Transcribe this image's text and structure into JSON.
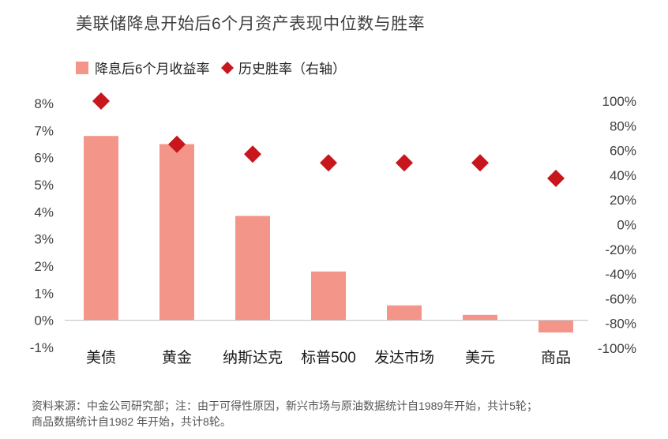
{
  "chart_data": {
    "type": "bar",
    "title": "美联储降息开始后6个月资产表现中位数与胜率",
    "categories": [
      "美债",
      "黄金",
      "纳斯达克",
      "标普500",
      "发达市场",
      "美元",
      "商品"
    ],
    "series": [
      {
        "name": "降息后6个月收益率",
        "type": "bar",
        "axis": "left",
        "color": "#f4958a",
        "values": [
          6.8,
          6.5,
          3.85,
          1.8,
          0.55,
          0.2,
          -0.45
        ]
      },
      {
        "name": "历史胜率（右轴）",
        "type": "scatter",
        "axis": "right",
        "marker": "diamond",
        "color": "#c8161d",
        "values": [
          100,
          65,
          57,
          50,
          50,
          50,
          37.5
        ]
      }
    ],
    "y_left": {
      "range": [
        -1,
        8
      ],
      "ticks": [
        -1,
        0,
        1,
        2,
        3,
        4,
        5,
        6,
        7,
        8
      ],
      "tick_labels": [
        "-1%",
        "0%",
        "1%",
        "2%",
        "3%",
        "4%",
        "5%",
        "6%",
        "7%",
        "8%"
      ]
    },
    "y_right": {
      "range": [
        -100,
        100
      ],
      "ticks": [
        -100,
        -80,
        -60,
        -40,
        -20,
        0,
        20,
        40,
        60,
        80,
        100
      ],
      "tick_labels": [
        "-100%",
        "-80%",
        "-60%",
        "-40%",
        "-20%",
        "0%",
        "20%",
        "40%",
        "60%",
        "80%",
        "100%"
      ]
    },
    "grid": false,
    "legend_position": "top-left"
  },
  "source_note": {
    "line1": "资料来源：中金公司研究部；注：由于可得性原因，新兴市场与原油数据统计自1989年开始，共计5轮；",
    "line2": "商品数据统计自1982 年开始，共计8轮。"
  }
}
